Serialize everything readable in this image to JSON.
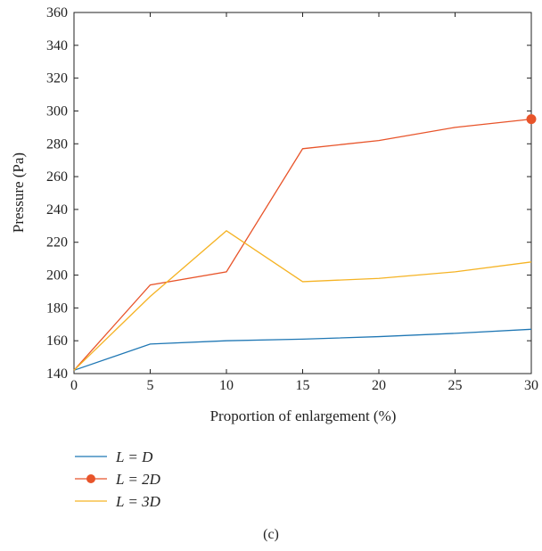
{
  "caption": "(c)",
  "chart_data": {
    "type": "line",
    "xlabel": "Proportion of enlargement (%)",
    "ylabel": "Pressure (Pa)",
    "xlim": [
      0,
      30
    ],
    "ylim": [
      140,
      360
    ],
    "x_ticks": [
      "0",
      "5",
      "10",
      "15",
      "20",
      "25",
      "30"
    ],
    "y_ticks": [
      "140",
      "160",
      "180",
      "200",
      "220",
      "240",
      "260",
      "280",
      "300",
      "320",
      "340",
      "360"
    ],
    "grid": false,
    "legend_position": "bottom-left (below plot)",
    "x": [
      0,
      5,
      10,
      15,
      20,
      25,
      30
    ],
    "series": [
      {
        "name": "L = D",
        "color": "#1f77b4",
        "values": [
          142,
          158,
          160,
          161,
          162.5,
          164.5,
          167
        ],
        "marker_at_end": false
      },
      {
        "name": "L = 2D",
        "color": "#e8542a",
        "values": [
          142,
          194,
          202,
          277,
          282,
          290,
          295
        ],
        "marker_at_end": true
      },
      {
        "name": "L = 3D",
        "color": "#f5b324",
        "values": [
          142,
          187,
          227,
          196,
          198,
          202,
          208
        ],
        "marker_at_end": false
      }
    ]
  }
}
